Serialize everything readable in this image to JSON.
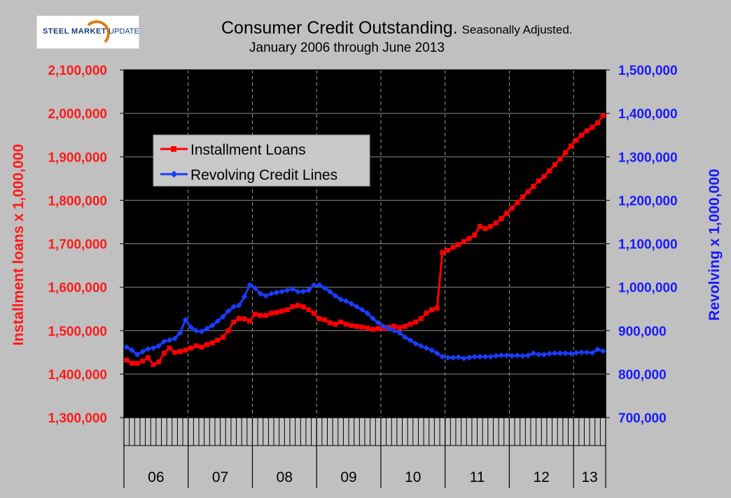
{
  "logo": {
    "text_bold": "STEEL",
    "text_bold2": "MARKET",
    "text_rest": "UPDATE"
  },
  "header": {
    "title": "Consumer Credit Outstanding.",
    "title_note": "Seasonally Adjusted.",
    "subtitle": "January 2006 through June 2013"
  },
  "colors": {
    "installment": "#ff0000",
    "revolving": "#1a3cff",
    "plot_bg": "#000000",
    "page_bg": "#c0c0c0"
  },
  "chart_data": {
    "type": "line",
    "title": "Consumer Credit Outstanding. Seasonally Adjusted.",
    "subtitle": "January 2006 through June 2013",
    "x_tick_labels": [
      "06",
      "07",
      "08",
      "09",
      "10",
      "11",
      "12",
      "13"
    ],
    "months": 90,
    "grid": "vertical dashed at year boundaries, horizontal solid",
    "legend_placement": "top-left",
    "y_left": {
      "label": "Installment loans x 1,000,000",
      "range": [
        1300000,
        2100000
      ],
      "ticks": [
        "1,300,000",
        "1,400,000",
        "1,500,000",
        "1,600,000",
        "1,700,000",
        "1,800,000",
        "1,900,000",
        "2,000,000",
        "2,100,000"
      ]
    },
    "y_right": {
      "label": "Revolving x 1,000,000",
      "range": [
        700000,
        1500000
      ],
      "ticks": [
        "700,000",
        "800,000",
        "900,000",
        "1,000,000",
        "1,100,000",
        "1,200,000",
        "1,300,000",
        "1,400,000",
        "1,500,000"
      ]
    },
    "series": [
      {
        "name": "Installment Loans",
        "axis": "left",
        "values": [
          1432000,
          1425000,
          1425000,
          1430000,
          1438000,
          1422000,
          1428000,
          1448000,
          1460000,
          1450000,
          1452000,
          1455000,
          1460000,
          1465000,
          1462000,
          1468000,
          1472000,
          1478000,
          1485000,
          1500000,
          1520000,
          1528000,
          1527000,
          1522000,
          1538000,
          1535000,
          1535000,
          1540000,
          1542000,
          1545000,
          1548000,
          1555000,
          1558000,
          1555000,
          1548000,
          1540000,
          1528000,
          1525000,
          1518000,
          1515000,
          1520000,
          1515000,
          1512000,
          1510000,
          1508000,
          1506000,
          1503000,
          1505000,
          1505000,
          1508000,
          1510000,
          1507000,
          1510000,
          1515000,
          1520000,
          1528000,
          1540000,
          1548000,
          1552000,
          1680000,
          1685000,
          1692000,
          1698000,
          1705000,
          1712000,
          1720000,
          1740000,
          1735000,
          1740000,
          1748000,
          1758000,
          1770000,
          1782000,
          1795000,
          1808000,
          1820000,
          1832000,
          1845000,
          1855000,
          1868000,
          1882000,
          1895000,
          1910000,
          1925000,
          1938000,
          1950000,
          1960000,
          1968000,
          1978000,
          1995000
        ]
      },
      {
        "name": "Revolving Credit Lines",
        "axis": "right",
        "values": [
          862000,
          855000,
          845000,
          852000,
          858000,
          860000,
          865000,
          875000,
          878000,
          882000,
          895000,
          925000,
          908000,
          900000,
          898000,
          905000,
          912000,
          922000,
          932000,
          945000,
          955000,
          958000,
          978000,
          1005000,
          998000,
          985000,
          980000,
          985000,
          988000,
          990000,
          993000,
          996000,
          990000,
          990000,
          993000,
          1005000,
          1005000,
          998000,
          990000,
          980000,
          972000,
          968000,
          962000,
          955000,
          948000,
          940000,
          928000,
          918000,
          910000,
          905000,
          900000,
          895000,
          885000,
          878000,
          870000,
          865000,
          860000,
          855000,
          848000,
          840000,
          838000,
          838000,
          839000,
          836000,
          838000,
          840000,
          840000,
          840000,
          840000,
          842000,
          843000,
          843000,
          842000,
          843000,
          842000,
          843000,
          848000,
          845000,
          845000,
          847000,
          848000,
          848000,
          848000,
          847000,
          849000,
          850000,
          850000,
          849000,
          857000,
          853000
        ]
      }
    ]
  }
}
